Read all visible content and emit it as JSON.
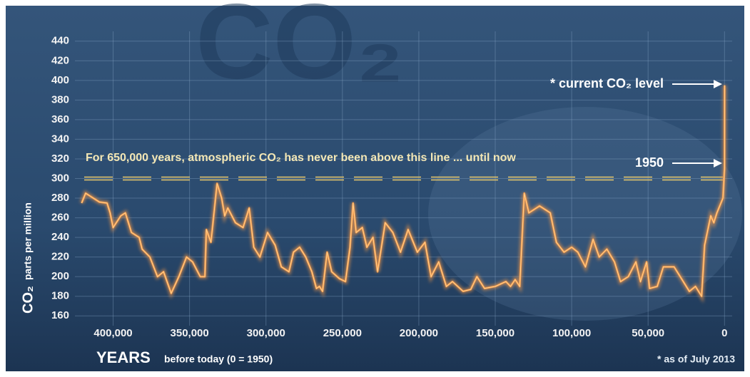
{
  "chart_data": {
    "type": "line",
    "watermark": "CO₂",
    "ylabel": "CO₂",
    "ylabel_sub": "parts per million",
    "xlabel": "YEARS",
    "xlabel_sub": "before today (0 = 1950)",
    "annotations": {
      "current": "* current CO₂ level",
      "year_1950": "1950",
      "threshold_text": "For 650,000 years, atmospheric CO₂ has never been above this line ... until now",
      "footnote": "* as of July 2013"
    },
    "threshold": 300,
    "threshold_color": "#e9c86a",
    "color": "#f59a4a",
    "grid": true,
    "xlim": [
      425000,
      -5000
    ],
    "ylim": [
      150,
      450
    ],
    "xticks": [
      {
        "value": 400000,
        "label": "400,000"
      },
      {
        "value": 350000,
        "label": "350,000"
      },
      {
        "value": 300000,
        "label": "300,000"
      },
      {
        "value": 250000,
        "label": "250,000"
      },
      {
        "value": 200000,
        "label": "200,000"
      },
      {
        "value": 150000,
        "label": "150,000"
      },
      {
        "value": 100000,
        "label": "100,000"
      },
      {
        "value": 50000,
        "label": "50,000"
      },
      0
    ],
    "yticks": [
      160,
      180,
      200,
      220,
      240,
      260,
      280,
      300,
      320,
      340,
      360,
      380,
      400,
      420,
      440
    ],
    "x": [
      420600,
      418000,
      409000,
      404000,
      402000,
      400000,
      395000,
      392000,
      388000,
      383000,
      381000,
      376000,
      371000,
      367000,
      362000,
      357000,
      352000,
      348000,
      343000,
      340000,
      339000,
      336000,
      332000,
      329000,
      327000,
      325000,
      320000,
      315000,
      311000,
      308000,
      304000,
      299000,
      294000,
      290000,
      285000,
      282000,
      278000,
      274000,
      270000,
      267000,
      265000,
      263000,
      260000,
      257000,
      252000,
      248000,
      245000,
      243000,
      241000,
      237000,
      234000,
      230000,
      227000,
      222000,
      217000,
      212000,
      207000,
      201000,
      196000,
      192000,
      187000,
      182000,
      178000,
      171000,
      166000,
      162000,
      157000,
      150000,
      143000,
      140000,
      137000,
      134000,
      131000,
      128000,
      121000,
      114000,
      110000,
      105000,
      100000,
      96000,
      91000,
      86000,
      82000,
      77000,
      72000,
      68000,
      63000,
      58000,
      55000,
      51000,
      49000,
      44000,
      40000,
      33000,
      27000,
      23000,
      19000,
      15000,
      13000,
      9000,
      7000,
      5000,
      1000,
      0,
      -63
    ],
    "values": [
      275,
      285,
      276,
      275,
      265,
      250,
      262,
      265,
      245,
      240,
      228,
      220,
      200,
      205,
      183,
      200,
      220,
      215,
      200,
      200,
      248,
      235,
      295,
      280,
      262,
      270,
      255,
      250,
      270,
      230,
      220,
      245,
      232,
      210,
      205,
      225,
      230,
      220,
      205,
      188,
      190,
      185,
      225,
      205,
      198,
      195,
      230,
      275,
      245,
      250,
      230,
      240,
      205,
      255,
      245,
      225,
      248,
      225,
      235,
      200,
      215,
      190,
      195,
      185,
      187,
      200,
      188,
      190,
      195,
      190,
      197,
      190,
      285,
      265,
      272,
      265,
      235,
      225,
      230,
      225,
      210,
      238,
      220,
      228,
      215,
      195,
      200,
      215,
      195,
      215,
      188,
      190,
      210,
      210,
      195,
      185,
      190,
      180,
      232,
      262,
      255,
      265,
      280,
      310,
      395
    ]
  }
}
